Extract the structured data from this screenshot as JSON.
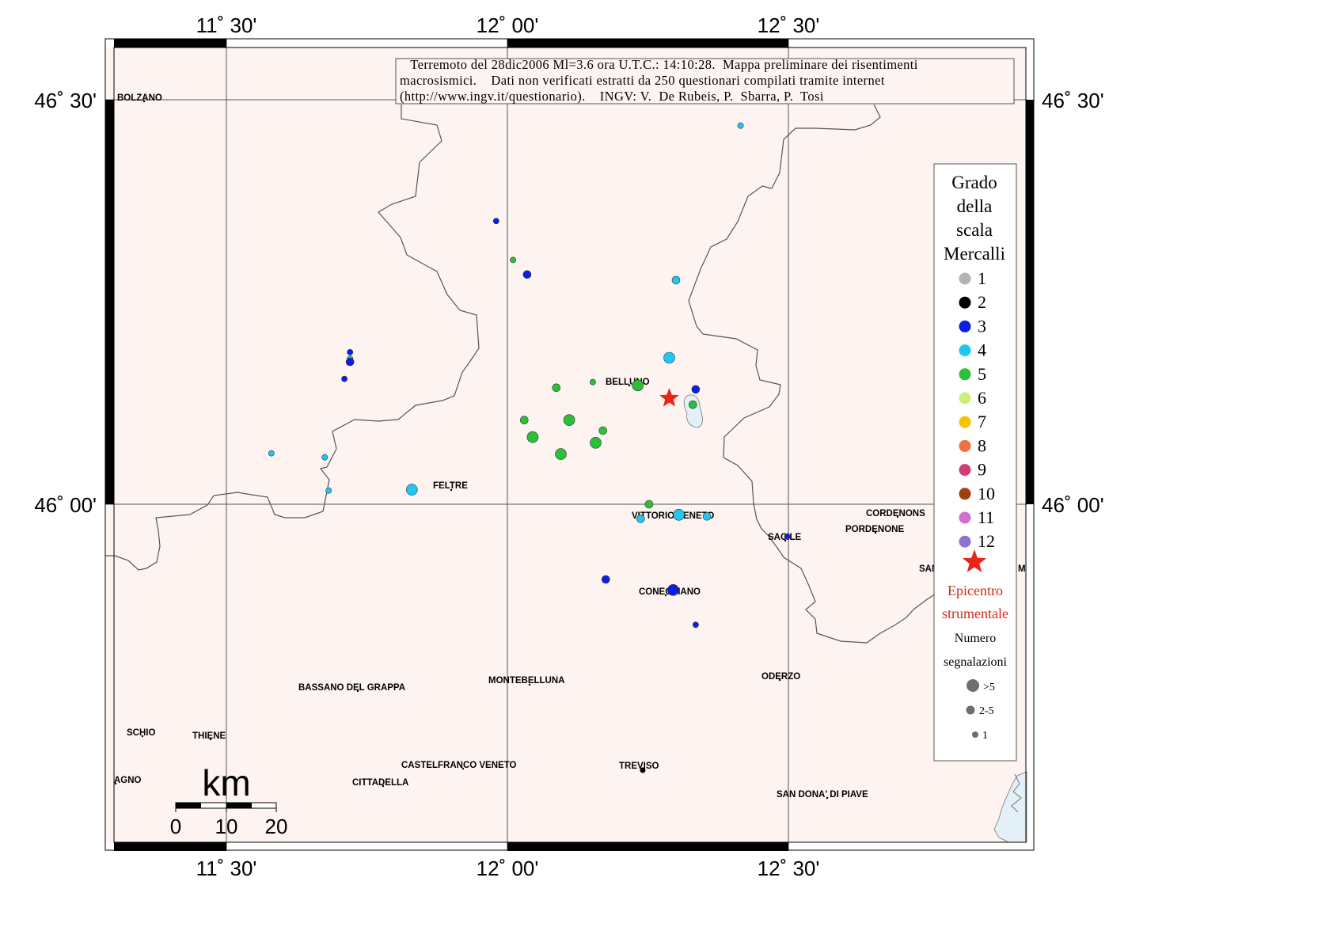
{
  "map": {
    "caption_lines": [
      "   Terremoto del 28dic2006 Ml=3.6 ora U.T.C.: 14:10:28.  Mappa preliminare dei risentimenti",
      "macrosismici.    Dati non verificati estratti da 250 questionari compilati tramite internet",
      "(http://www.ingv.it/questionario).    INGV: V.  De Rubeis, P.  Sbarra, P.  Tosi"
    ],
    "lon_ticks": [
      "11˚ 30'",
      "12˚ 00'",
      "12˚ 30'"
    ],
    "lat_ticks": [
      "46˚ 30'",
      "46˚ 00'"
    ],
    "cities": [
      {
        "name": "BOLZANO"
      },
      {
        "name": "BELLUNO"
      },
      {
        "name": "FELTRE"
      },
      {
        "name": "VITTORIO VENETO"
      },
      {
        "name": "CORDENONS"
      },
      {
        "name": "PORDENONE"
      },
      {
        "name": "SACILE"
      },
      {
        "name": "SAN"
      },
      {
        "name": "M"
      },
      {
        "name": "CONEGLIANO"
      },
      {
        "name": "ODERZO"
      },
      {
        "name": "MONTEBELLUNA"
      },
      {
        "name": "BASSANO DEL GRAPPA"
      },
      {
        "name": "SCHIO"
      },
      {
        "name": "THIENE"
      },
      {
        "name": "AGNO"
      },
      {
        "name": "CASTELFRANCO VENETO"
      },
      {
        "name": "CITTADELLA"
      },
      {
        "name": "TREVISO"
      },
      {
        "name": "SAN DONA' DI PIAVE"
      }
    ],
    "observations": [
      {
        "lon": 12.415,
        "lat": 46.468,
        "mcs": 4,
        "count": "1"
      },
      {
        "lon": 11.98,
        "lat": 46.35,
        "mcs": 3,
        "count": "1"
      },
      {
        "lon": 12.01,
        "lat": 46.302,
        "mcs": 5,
        "count": "1"
      },
      {
        "lon": 12.035,
        "lat": 46.284,
        "mcs": 3,
        "count": "2-5"
      },
      {
        "lon": 12.3,
        "lat": 46.277,
        "mcs": 4,
        "count": "2-5"
      },
      {
        "lon": 11.72,
        "lat": 46.188,
        "mcs": 3,
        "count": "1"
      },
      {
        "lon": 11.72,
        "lat": 46.18,
        "mcs": 4,
        "count": "1"
      },
      {
        "lon": 11.72,
        "lat": 46.176,
        "mcs": 3,
        "count": "2-5"
      },
      {
        "lon": 11.71,
        "lat": 46.155,
        "mcs": 3,
        "count": "1"
      },
      {
        "lon": 12.288,
        "lat": 46.181,
        "mcs": 4,
        "count": ">5"
      },
      {
        "lon": 12.152,
        "lat": 46.151,
        "mcs": 5,
        "count": "1"
      },
      {
        "lon": 12.087,
        "lat": 46.144,
        "mcs": 5,
        "count": "2-5"
      },
      {
        "lon": 12.232,
        "lat": 46.147,
        "mcs": 5,
        "count": ">5"
      },
      {
        "lon": 12.335,
        "lat": 46.142,
        "mcs": 3,
        "count": "2-5"
      },
      {
        "lon": 12.33,
        "lat": 46.123,
        "mcs": 5,
        "count": "2-5"
      },
      {
        "lon": 12.03,
        "lat": 46.104,
        "mcs": 5,
        "count": "2-5"
      },
      {
        "lon": 12.11,
        "lat": 46.104,
        "mcs": 5,
        "count": ">5"
      },
      {
        "lon": 12.17,
        "lat": 46.091,
        "mcs": 5,
        "count": "2-5"
      },
      {
        "lon": 12.045,
        "lat": 46.083,
        "mcs": 5,
        "count": ">5"
      },
      {
        "lon": 12.157,
        "lat": 46.076,
        "mcs": 5,
        "count": ">5"
      },
      {
        "lon": 12.095,
        "lat": 46.062,
        "mcs": 5,
        "count": ">5"
      },
      {
        "lon": 11.58,
        "lat": 46.063,
        "mcs": 4,
        "count": "1"
      },
      {
        "lon": 11.675,
        "lat": 46.058,
        "mcs": 4,
        "count": "1"
      },
      {
        "lon": 11.682,
        "lat": 46.017,
        "mcs": 4,
        "count": "1"
      },
      {
        "lon": 11.83,
        "lat": 46.018,
        "mcs": 4,
        "count": ">5"
      },
      {
        "lon": 12.252,
        "lat": 46.0,
        "mcs": 5,
        "count": "2-5"
      },
      {
        "lon": 12.305,
        "lat": 45.987,
        "mcs": 4,
        "count": ">5"
      },
      {
        "lon": 12.237,
        "lat": 45.982,
        "mcs": 4,
        "count": "2-5"
      },
      {
        "lon": 12.355,
        "lat": 45.985,
        "mcs": 4,
        "count": "2-5"
      },
      {
        "lon": 12.498,
        "lat": 45.96,
        "mcs": 3,
        "count": "1"
      },
      {
        "lon": 12.175,
        "lat": 45.907,
        "mcs": 3,
        "count": "2-5"
      },
      {
        "lon": 12.295,
        "lat": 45.894,
        "mcs": 3,
        "count": ">5"
      },
      {
        "lon": 12.335,
        "lat": 45.851,
        "mcs": 3,
        "count": "1"
      }
    ],
    "epicenter": {
      "lon": 12.288,
      "lat": 46.131
    },
    "lake": "lake",
    "colors": {
      "land": "#fdf4f1",
      "water": "#e3f0f8",
      "border": "#555555",
      "epicenter": "#e8261a"
    }
  },
  "legend": {
    "title_lines": [
      "Grado",
      "della",
      "scala",
      "Mercalli"
    ],
    "grades": [
      {
        "label": "1",
        "color": "#b3b3b3"
      },
      {
        "label": "2",
        "color": "#000000"
      },
      {
        "label": "3",
        "color": "#0b1ee6"
      },
      {
        "label": "4",
        "color": "#1ec8f0"
      },
      {
        "label": "5",
        "color": "#2cbf3a"
      },
      {
        "label": "6",
        "color": "#c8f07a"
      },
      {
        "label": "7",
        "color": "#f5c400"
      },
      {
        "label": "8",
        "color": "#f07040"
      },
      {
        "label": "9",
        "color": "#d03c78"
      },
      {
        "label": "10",
        "color": "#a04010"
      },
      {
        "label": "11",
        "color": "#d070d0"
      },
      {
        "label": "12",
        "color": "#9070d0"
      }
    ],
    "epicenter_lines": [
      "Epicentro",
      "strumentale"
    ],
    "count_title_lines": [
      "Numero",
      "segnalazioni"
    ],
    "sizes": [
      ">5",
      "2-5",
      "1"
    ]
  },
  "scalebar": {
    "unit": "km",
    "ticks": [
      "0",
      "10",
      "20"
    ]
  }
}
